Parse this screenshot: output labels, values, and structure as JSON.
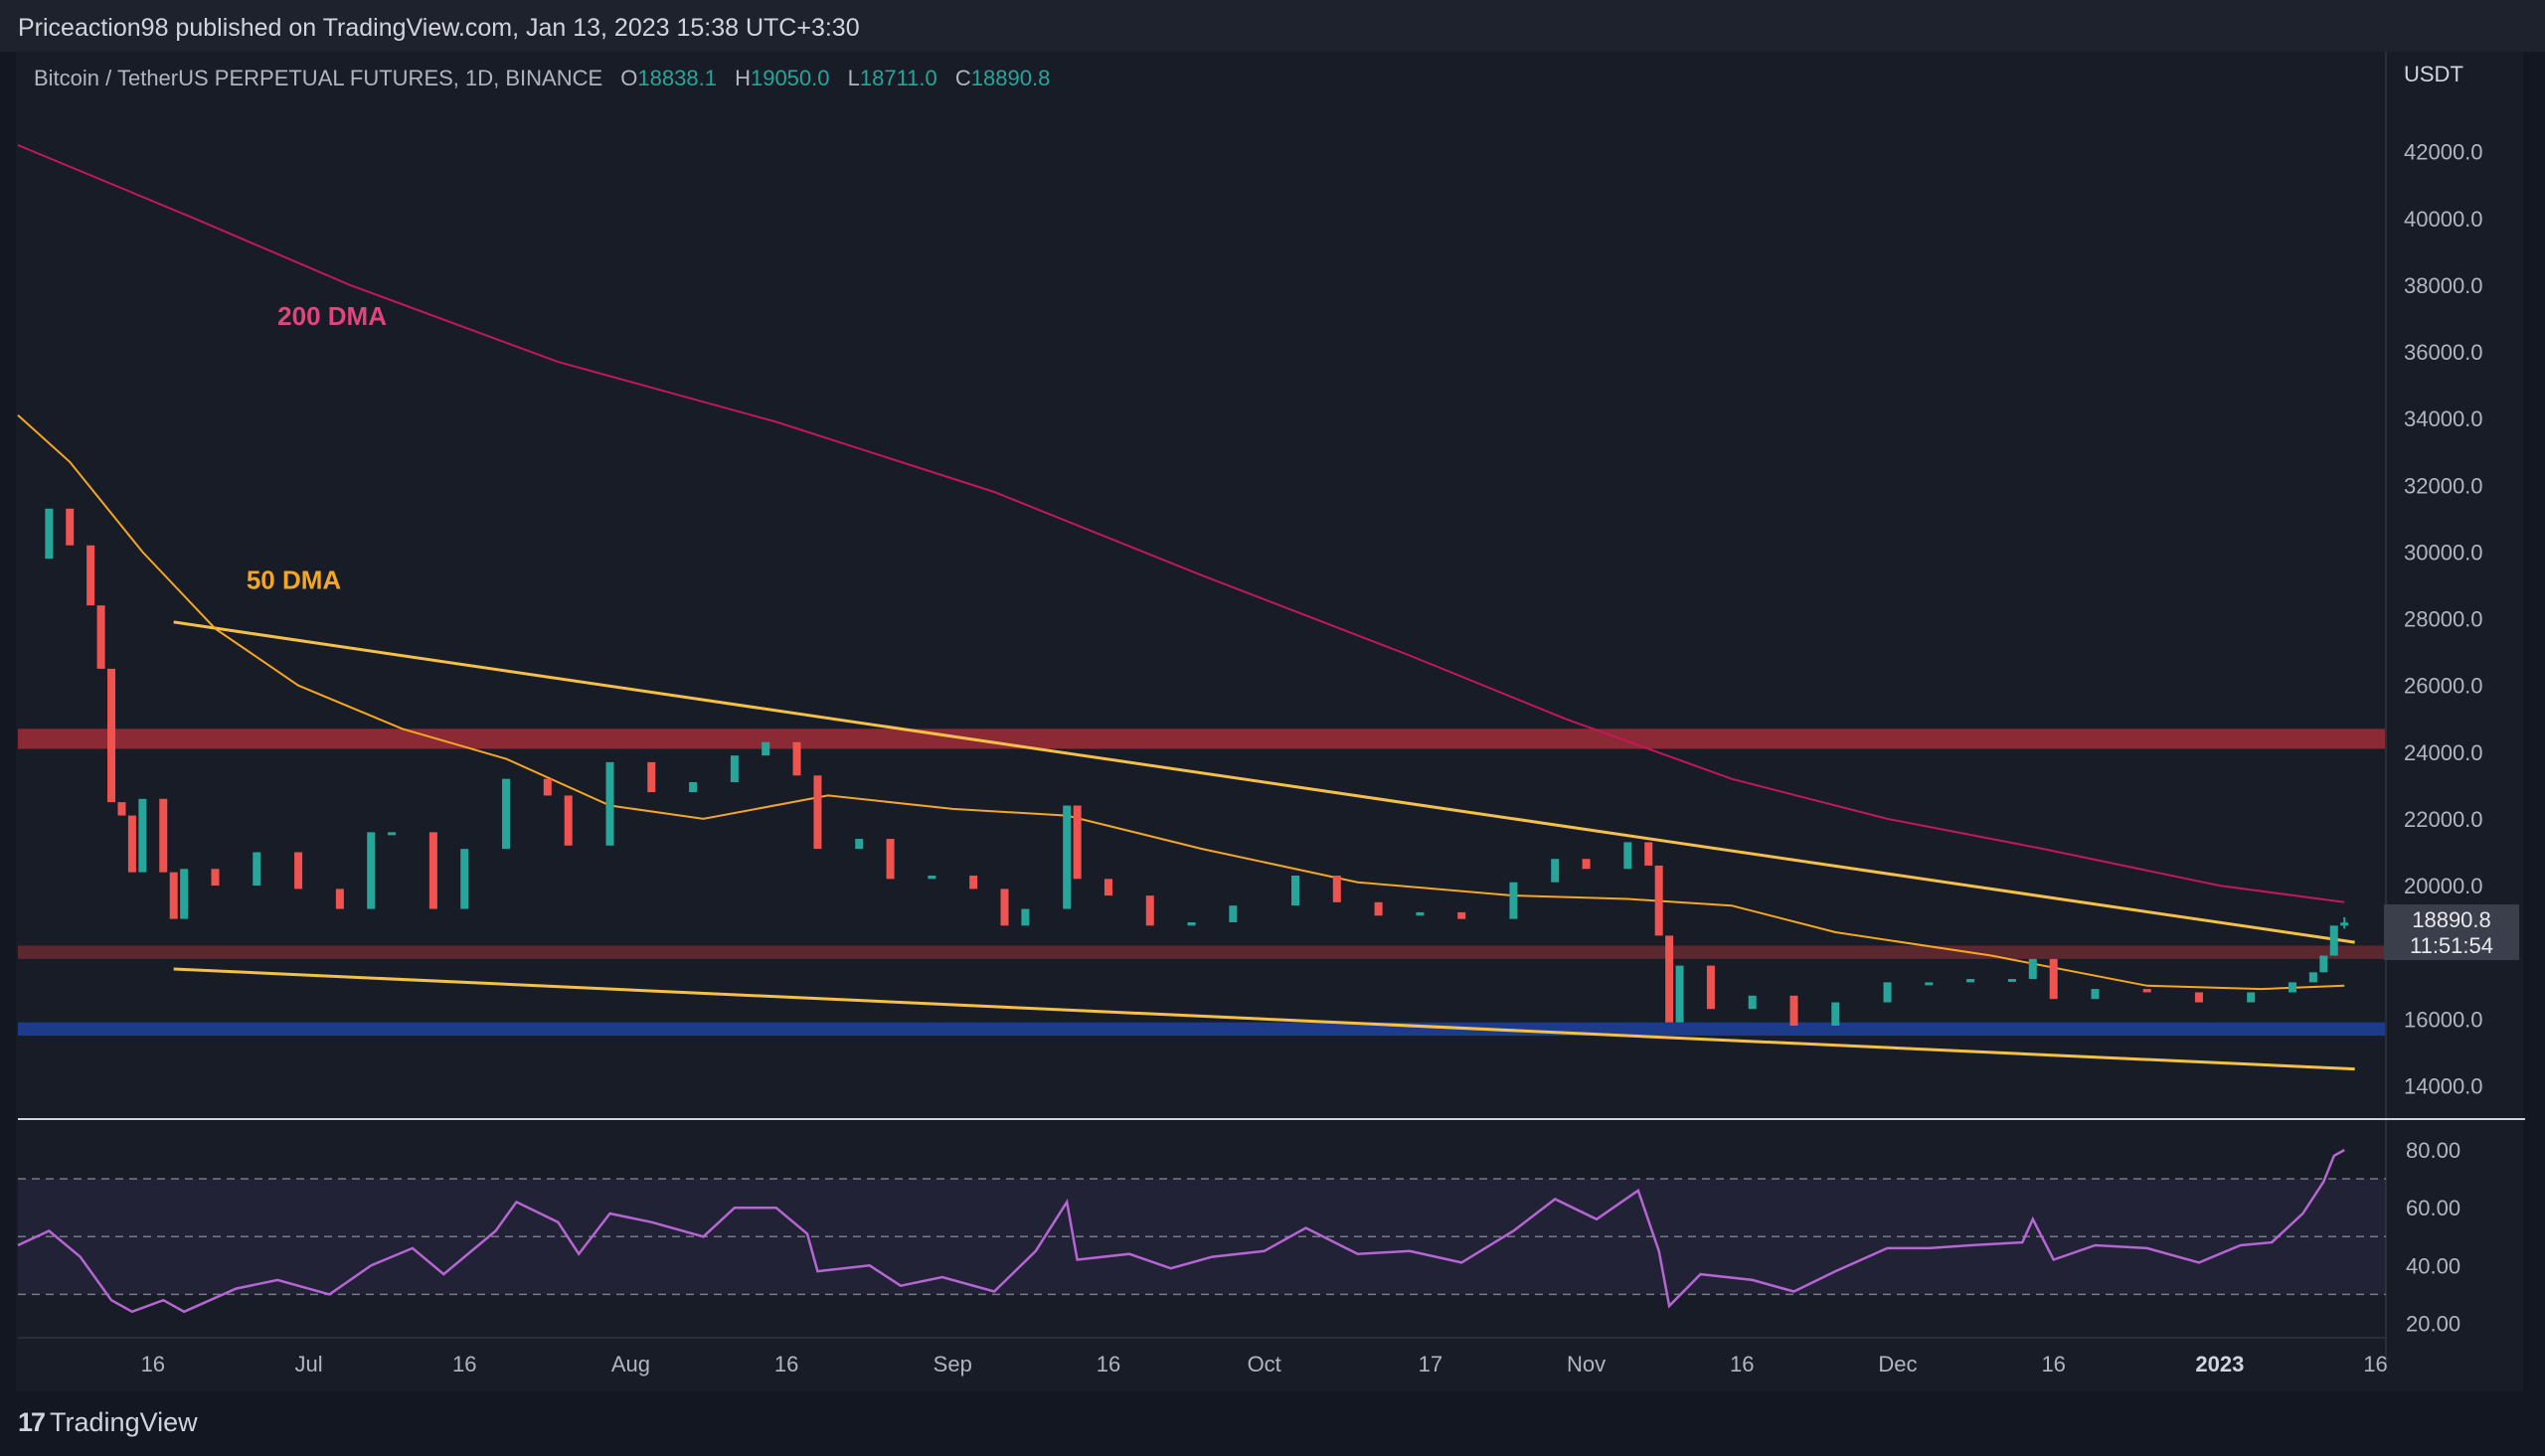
{
  "published": "Priceaction98 published on TradingView.com, Jan 13, 2023 15:38 UTC+3:30",
  "legend": {
    "symbol": "Bitcoin / TetherUS PERPETUAL FUTURES, 1D, BINANCE",
    "o_label": "O",
    "o_value": "18838.1",
    "h_label": "H",
    "h_value": "19050.0",
    "l_label": "L",
    "l_value": "18711.0",
    "c_label": "C",
    "c_value": "18890.8"
  },
  "currency_label": "USDT",
  "current_price": "18890.8",
  "countdown": "11:51:54",
  "footer_logo": "TradingView",
  "footer_logo_mark": "17",
  "colors": {
    "bull": "#26a69a",
    "bear": "#ef5350",
    "dma200": "#c2185b",
    "dma50": "#f5a623",
    "trendline": "#f5c04a",
    "resistance_zone": "#8b2a35",
    "support_zone": "#1e3a8a",
    "rsi_line": "#b666d2"
  },
  "chart_data": [
    {
      "type": "candlestick",
      "title": "Bitcoin / TetherUS PERPETUAL FUTURES, 1D, BINANCE",
      "ylim": [
        13000,
        45000
      ],
      "y_ticks": [
        "42000.0",
        "40000.0",
        "38000.0",
        "36000.0",
        "34000.0",
        "32000.0",
        "30000.0",
        "28000.0",
        "26000.0",
        "24000.0",
        "22000.0",
        "20000.0",
        "18000.0",
        "16000.0",
        "14000.0"
      ],
      "x_ticks": [
        {
          "label": "16",
          "date": "2022-06-16"
        },
        {
          "label": "Jul",
          "date": "2022-07-01"
        },
        {
          "label": "16",
          "date": "2022-07-16"
        },
        {
          "label": "Aug",
          "date": "2022-08-01"
        },
        {
          "label": "16",
          "date": "2022-08-16"
        },
        {
          "label": "Sep",
          "date": "2022-09-01"
        },
        {
          "label": "16",
          "date": "2022-09-16"
        },
        {
          "label": "Oct",
          "date": "2022-10-01"
        },
        {
          "label": "17",
          "date": "2022-10-17"
        },
        {
          "label": "Nov",
          "date": "2022-11-01"
        },
        {
          "label": "16",
          "date": "2022-11-16"
        },
        {
          "label": "Dec",
          "date": "2022-12-01"
        },
        {
          "label": "16",
          "date": "2022-12-16"
        },
        {
          "label": "2023",
          "date": "2023-01-01"
        },
        {
          "label": "16",
          "date": "2023-01-16"
        }
      ],
      "x_range": [
        "2022-06-03",
        "2023-01-17"
      ],
      "close_path": [
        [
          "2022-06-03",
          29800
        ],
        [
          "2022-06-06",
          31300
        ],
        [
          "2022-06-08",
          30200
        ],
        [
          "2022-06-10",
          28400
        ],
        [
          "2022-06-11",
          26500
        ],
        [
          "2022-06-12",
          22500
        ],
        [
          "2022-06-13",
          22100
        ],
        [
          "2022-06-14",
          20400
        ],
        [
          "2022-06-15",
          22600
        ],
        [
          "2022-06-17",
          20400
        ],
        [
          "2022-06-18",
          19000
        ],
        [
          "2022-06-19",
          20500
        ],
        [
          "2022-06-22",
          20000
        ],
        [
          "2022-06-26",
          21000
        ],
        [
          "2022-06-30",
          19900
        ],
        [
          "2022-07-04",
          19300
        ],
        [
          "2022-07-07",
          21600
        ],
        [
          "2022-07-09",
          21600
        ],
        [
          "2022-07-13",
          19300
        ],
        [
          "2022-07-16",
          21100
        ],
        [
          "2022-07-20",
          23200
        ],
        [
          "2022-07-24",
          22700
        ],
        [
          "2022-07-26",
          21200
        ],
        [
          "2022-07-30",
          23700
        ],
        [
          "2022-08-03",
          22800
        ],
        [
          "2022-08-07",
          23100
        ],
        [
          "2022-08-11",
          23900
        ],
        [
          "2022-08-14",
          24300
        ],
        [
          "2022-08-17",
          23300
        ],
        [
          "2022-08-19",
          21100
        ],
        [
          "2022-08-23",
          21400
        ],
        [
          "2022-08-26",
          20200
        ],
        [
          "2022-08-30",
          20300
        ],
        [
          "2022-09-03",
          19900
        ],
        [
          "2022-09-06",
          18800
        ],
        [
          "2022-09-08",
          19300
        ],
        [
          "2022-09-12",
          22400
        ],
        [
          "2022-09-13",
          20200
        ],
        [
          "2022-09-16",
          19700
        ],
        [
          "2022-09-20",
          18800
        ],
        [
          "2022-09-24",
          18900
        ],
        [
          "2022-09-28",
          19400
        ],
        [
          "2022-10-04",
          20300
        ],
        [
          "2022-10-08",
          19500
        ],
        [
          "2022-10-12",
          19100
        ],
        [
          "2022-10-16",
          19200
        ],
        [
          "2022-10-20",
          19000
        ],
        [
          "2022-10-25",
          20100
        ],
        [
          "2022-10-29",
          20800
        ],
        [
          "2022-11-01",
          20500
        ],
        [
          "2022-11-05",
          21300
        ],
        [
          "2022-11-07",
          20600
        ],
        [
          "2022-11-08",
          18500
        ],
        [
          "2022-11-09",
          15900
        ],
        [
          "2022-11-10",
          17600
        ],
        [
          "2022-11-13",
          16300
        ],
        [
          "2022-11-17",
          16700
        ],
        [
          "2022-11-21",
          15800
        ],
        [
          "2022-11-25",
          16500
        ],
        [
          "2022-11-30",
          17100
        ],
        [
          "2022-12-04",
          17100
        ],
        [
          "2022-12-08",
          17200
        ],
        [
          "2022-12-12",
          17200
        ],
        [
          "2022-12-14",
          17800
        ],
        [
          "2022-12-16",
          16600
        ],
        [
          "2022-12-20",
          16900
        ],
        [
          "2022-12-25",
          16800
        ],
        [
          "2022-12-30",
          16500
        ],
        [
          "2023-01-04",
          16800
        ],
        [
          "2023-01-08",
          17100
        ],
        [
          "2023-01-10",
          17400
        ],
        [
          "2023-01-11",
          17900
        ],
        [
          "2023-01-12",
          18800
        ],
        [
          "2023-01-13",
          18891
        ]
      ],
      "last_bar": {
        "date": "2023-01-13",
        "open": 18838.1,
        "high": 19050.0,
        "low": 18711.0,
        "close": 18890.8
      },
      "series": [
        {
          "name": "200 DMA",
          "points": [
            [
              "2022-06-03",
              42200
            ],
            [
              "2022-06-20",
              40000
            ],
            [
              "2022-07-05",
              38000
            ],
            [
              "2022-07-25",
              35700
            ],
            [
              "2022-08-15",
              33900
            ],
            [
              "2022-09-05",
              31800
            ],
            [
              "2022-09-25",
              29300
            ],
            [
              "2022-10-15",
              26900
            ],
            [
              "2022-10-30",
              25000
            ],
            [
              "2022-11-15",
              23200
            ],
            [
              "2022-11-30",
              22000
            ],
            [
              "2022-12-15",
              21100
            ],
            [
              "2023-01-01",
              20000
            ],
            [
              "2023-01-13",
              19500
            ]
          ]
        },
        {
          "name": "50 DMA",
          "points": [
            [
              "2022-06-03",
              34100
            ],
            [
              "2022-06-08",
              32700
            ],
            [
              "2022-06-15",
              30000
            ],
            [
              "2022-06-22",
              27700
            ],
            [
              "2022-06-30",
              26000
            ],
            [
              "2022-07-10",
              24700
            ],
            [
              "2022-07-20",
              23800
            ],
            [
              "2022-07-30",
              22400
            ],
            [
              "2022-08-08",
              22000
            ],
            [
              "2022-08-20",
              22700
            ],
            [
              "2022-09-01",
              22300
            ],
            [
              "2022-09-12",
              22100
            ],
            [
              "2022-09-25",
              21100
            ],
            [
              "2022-10-10",
              20100
            ],
            [
              "2022-10-25",
              19700
            ],
            [
              "2022-11-05",
              19600
            ],
            [
              "2022-11-15",
              19400
            ],
            [
              "2022-11-25",
              18600
            ],
            [
              "2022-12-10",
              17900
            ],
            [
              "2022-12-25",
              17000
            ],
            [
              "2023-01-05",
              16900
            ],
            [
              "2023-01-13",
              17000
            ]
          ]
        }
      ],
      "annotations": [
        {
          "text": "200 DMA",
          "color": "#e0457b",
          "date": "2022-06-28",
          "price": 36800
        },
        {
          "text": "50 DMA",
          "color": "#f5a623",
          "date": "2022-06-25",
          "price": 28900
        }
      ],
      "trendlines": [
        {
          "from": [
            "2022-06-18",
            27900
          ],
          "to": [
            "2023-01-14",
            18300
          ]
        },
        {
          "from": [
            "2022-06-18",
            17500
          ],
          "to": [
            "2023-01-14",
            14500
          ]
        }
      ],
      "zones": [
        {
          "name": "resistance",
          "low": 24100,
          "high": 24700
        },
        {
          "name": "mid",
          "low": 17800,
          "high": 18200
        },
        {
          "name": "support",
          "low": 15500,
          "high": 15900
        }
      ]
    },
    {
      "type": "line",
      "title": "",
      "ylim": [
        15,
        90
      ],
      "y_ticks": [
        "80.00",
        "60.00",
        "40.00",
        "20.00"
      ],
      "band": [
        30,
        70
      ],
      "series": [
        {
          "name": "",
          "points": [
            [
              "2022-06-03",
              47
            ],
            [
              "2022-06-06",
              52
            ],
            [
              "2022-06-09",
              43
            ],
            [
              "2022-06-12",
              28
            ],
            [
              "2022-06-14",
              24
            ],
            [
              "2022-06-17",
              28
            ],
            [
              "2022-06-19",
              24
            ],
            [
              "2022-06-24",
              32
            ],
            [
              "2022-06-28",
              35
            ],
            [
              "2022-07-03",
              30
            ],
            [
              "2022-07-07",
              40
            ],
            [
              "2022-07-11",
              46
            ],
            [
              "2022-07-14",
              37
            ],
            [
              "2022-07-19",
              52
            ],
            [
              "2022-07-21",
              62
            ],
            [
              "2022-07-25",
              55
            ],
            [
              "2022-07-27",
              44
            ],
            [
              "2022-07-30",
              58
            ],
            [
              "2022-08-03",
              55
            ],
            [
              "2022-08-08",
              50
            ],
            [
              "2022-08-11",
              60
            ],
            [
              "2022-08-15",
              60
            ],
            [
              "2022-08-18",
              51
            ],
            [
              "2022-08-19",
              38
            ],
            [
              "2022-08-24",
              40
            ],
            [
              "2022-08-27",
              33
            ],
            [
              "2022-08-31",
              36
            ],
            [
              "2022-09-05",
              31
            ],
            [
              "2022-09-09",
              45
            ],
            [
              "2022-09-12",
              62
            ],
            [
              "2022-09-13",
              42
            ],
            [
              "2022-09-18",
              44
            ],
            [
              "2022-09-22",
              39
            ],
            [
              "2022-09-26",
              43
            ],
            [
              "2022-10-01",
              45
            ],
            [
              "2022-10-05",
              53
            ],
            [
              "2022-10-10",
              44
            ],
            [
              "2022-10-15",
              45
            ],
            [
              "2022-10-20",
              41
            ],
            [
              "2022-10-25",
              52
            ],
            [
              "2022-10-29",
              63
            ],
            [
              "2022-11-02",
              56
            ],
            [
              "2022-11-06",
              66
            ],
            [
              "2022-11-08",
              45
            ],
            [
              "2022-11-09",
              26
            ],
            [
              "2022-11-12",
              37
            ],
            [
              "2022-11-17",
              35
            ],
            [
              "2022-11-21",
              31
            ],
            [
              "2022-11-25",
              38
            ],
            [
              "2022-11-30",
              46
            ],
            [
              "2022-12-04",
              46
            ],
            [
              "2022-12-08",
              47
            ],
            [
              "2022-12-13",
              48
            ],
            [
              "2022-12-14",
              56
            ],
            [
              "2022-12-16",
              42
            ],
            [
              "2022-12-20",
              47
            ],
            [
              "2022-12-25",
              46
            ],
            [
              "2022-12-30",
              41
            ],
            [
              "2023-01-03",
              47
            ],
            [
              "2023-01-06",
              48
            ],
            [
              "2023-01-09",
              58
            ],
            [
              "2023-01-11",
              69
            ],
            [
              "2023-01-12",
              78
            ],
            [
              "2023-01-13",
              80
            ]
          ]
        }
      ]
    }
  ]
}
